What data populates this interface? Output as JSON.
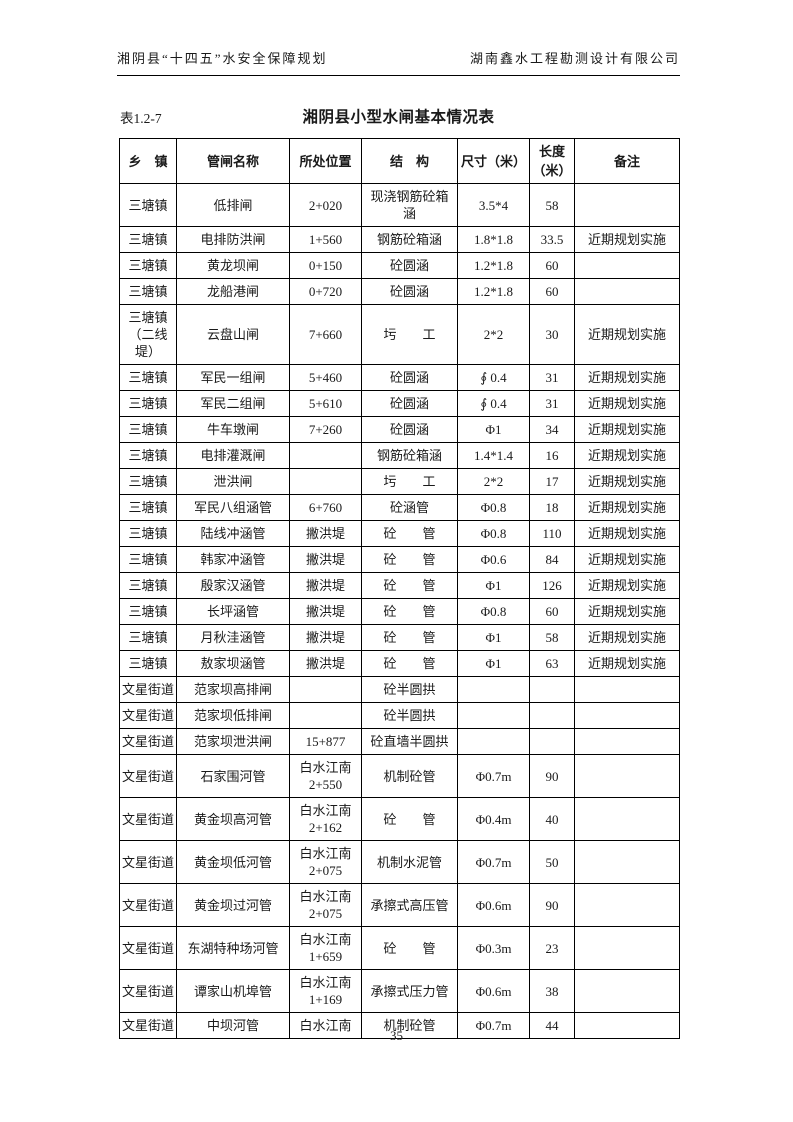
{
  "page_header": {
    "left": "湘阴县“十四五”水安全保障规划",
    "right": "湖南鑫水工程勘测设计有限公司"
  },
  "caption": {
    "label": "表1.2-7",
    "title": "湘阴县小型水闸基本情况表"
  },
  "table": {
    "columns": [
      "乡　镇",
      "管闸名称",
      "所处位置",
      "结　构",
      "尺寸（米）",
      "长度\n（米）",
      "备注"
    ],
    "rows": [
      [
        "三塘镇",
        "低排闸",
        "2+020",
        "现浇钢筋砼箱\n涵",
        "3.5*4",
        "58",
        ""
      ],
      [
        "三塘镇",
        "电排防洪闸",
        "1+560",
        "钢筋砼箱涵",
        "1.8*1.8",
        "33.5",
        "近期规划实施"
      ],
      [
        "三塘镇",
        "黄龙坝闸",
        "0+150",
        "砼圆涵",
        "1.2*1.8",
        "60",
        ""
      ],
      [
        "三塘镇",
        "龙船港闸",
        "0+720",
        "砼圆涵",
        "1.2*1.8",
        "60",
        ""
      ],
      [
        "三塘镇\n（二线\n堤）",
        "云盘山闸",
        "7+660",
        "圬　　工",
        "2*2",
        "30",
        "近期规划实施"
      ],
      [
        "三塘镇",
        "军民一组闸",
        "5+460",
        "砼圆涵",
        "∮ 0.4",
        "31",
        "近期规划实施"
      ],
      [
        "三塘镇",
        "军民二组闸",
        "5+610",
        "砼圆涵",
        "∮ 0.4",
        "31",
        "近期规划实施"
      ],
      [
        "三塘镇",
        "牛车墩闸",
        "7+260",
        "砼圆涵",
        "Φ1",
        "34",
        "近期规划实施"
      ],
      [
        "三塘镇",
        "电排灌溉闸",
        "",
        "钢筋砼箱涵",
        "1.4*1.4",
        "16",
        "近期规划实施"
      ],
      [
        "三塘镇",
        "泄洪闸",
        "",
        "圬　　工",
        "2*2",
        "17",
        "近期规划实施"
      ],
      [
        "三塘镇",
        "军民八组涵管",
        "6+760",
        "砼涵管",
        "Φ0.8",
        "18",
        "近期规划实施"
      ],
      [
        "三塘镇",
        "陆线冲涵管",
        "撇洪堤",
        "砼　　管",
        "Φ0.8",
        "110",
        "近期规划实施"
      ],
      [
        "三塘镇",
        "韩家冲涵管",
        "撇洪堤",
        "砼　　管",
        "Φ0.6",
        "84",
        "近期规划实施"
      ],
      [
        "三塘镇",
        "殷家汉涵管",
        "撇洪堤",
        "砼　　管",
        "Φ1",
        "126",
        "近期规划实施"
      ],
      [
        "三塘镇",
        "长坪涵管",
        "撇洪堤",
        "砼　　管",
        "Φ0.8",
        "60",
        "近期规划实施"
      ],
      [
        "三塘镇",
        "月秋洼涵管",
        "撇洪堤",
        "砼　　管",
        "Φ1",
        "58",
        "近期规划实施"
      ],
      [
        "三塘镇",
        "敖家坝涵管",
        "撇洪堤",
        "砼　　管",
        "Φ1",
        "63",
        "近期规划实施"
      ],
      [
        "文星街道",
        "范家坝高排闸",
        "",
        "砼半圆拱",
        "",
        "",
        ""
      ],
      [
        "文星街道",
        "范家坝低排闸",
        "",
        "砼半圆拱",
        "",
        "",
        ""
      ],
      [
        "文星街道",
        "范家坝泄洪闸",
        "15+877",
        "砼直墙半圆拱",
        "",
        "",
        ""
      ],
      [
        "文星街道",
        "石家围河管",
        "白水江南\n2+550",
        "机制砼管",
        "Φ0.7m",
        "90",
        ""
      ],
      [
        "文星街道",
        "黄金坝高河管",
        "白水江南\n2+162",
        "砼　　管",
        "Φ0.4m",
        "40",
        ""
      ],
      [
        "文星街道",
        "黄金坝低河管",
        "白水江南\n2+075",
        "机制水泥管",
        "Φ0.7m",
        "50",
        ""
      ],
      [
        "文星街道",
        "黄金坝过河管",
        "白水江南\n2+075",
        "承擦式高压管",
        "Φ0.6m",
        "90",
        ""
      ],
      [
        "文星街道",
        "东湖特种场河管",
        "白水江南\n1+659",
        "砼　　管",
        "Φ0.3m",
        "23",
        ""
      ],
      [
        "文星街道",
        "谭家山机埠管",
        "白水江南\n1+169",
        "承擦式压力管",
        "Φ0.6m",
        "38",
        ""
      ],
      [
        "文星街道",
        "中坝河管",
        "白水江南",
        "机制砼管",
        "Φ0.7m",
        "44",
        ""
      ]
    ]
  },
  "page_number": "35",
  "colors": {
    "text": "#1a1a1a",
    "border": "#000000",
    "background": "#ffffff"
  }
}
